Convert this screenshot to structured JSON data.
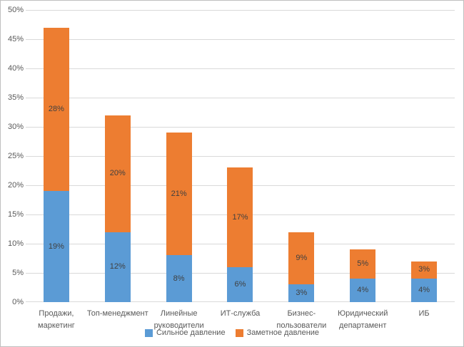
{
  "chart_data": {
    "type": "bar",
    "stacked": true,
    "title": "",
    "xlabel": "",
    "ylabel": "",
    "categories": [
      "Продажи, маркетинг",
      "Топ-менеджмент",
      "Линейные руководители",
      "ИТ-служба",
      "Бизнес-пользователи",
      "Юридический департамент",
      "ИБ"
    ],
    "series": [
      {
        "name": "Сильное давление",
        "color": "#5B9BD5",
        "values": [
          19,
          12,
          8,
          6,
          3,
          4,
          4
        ]
      },
      {
        "name": "Заметное давление",
        "color": "#ED7D31",
        "values": [
          28,
          20,
          21,
          17,
          9,
          5,
          3
        ]
      }
    ],
    "value_label_suffix": "%",
    "ylim": [
      0,
      50
    ],
    "ytick_step": 5,
    "ytick_labels": [
      "0%",
      "5%",
      "10%",
      "15%",
      "20%",
      "25%",
      "30%",
      "35%",
      "40%",
      "45%",
      "50%"
    ],
    "grid": true,
    "legend_position": "bottom"
  },
  "colors": {
    "background": "#FFFFFF",
    "border": "#BFBFBF",
    "gridline": "#D9D9D9",
    "axis_line": "#D9D9D9",
    "tick_text": "#595959",
    "value_text": "#404040"
  }
}
